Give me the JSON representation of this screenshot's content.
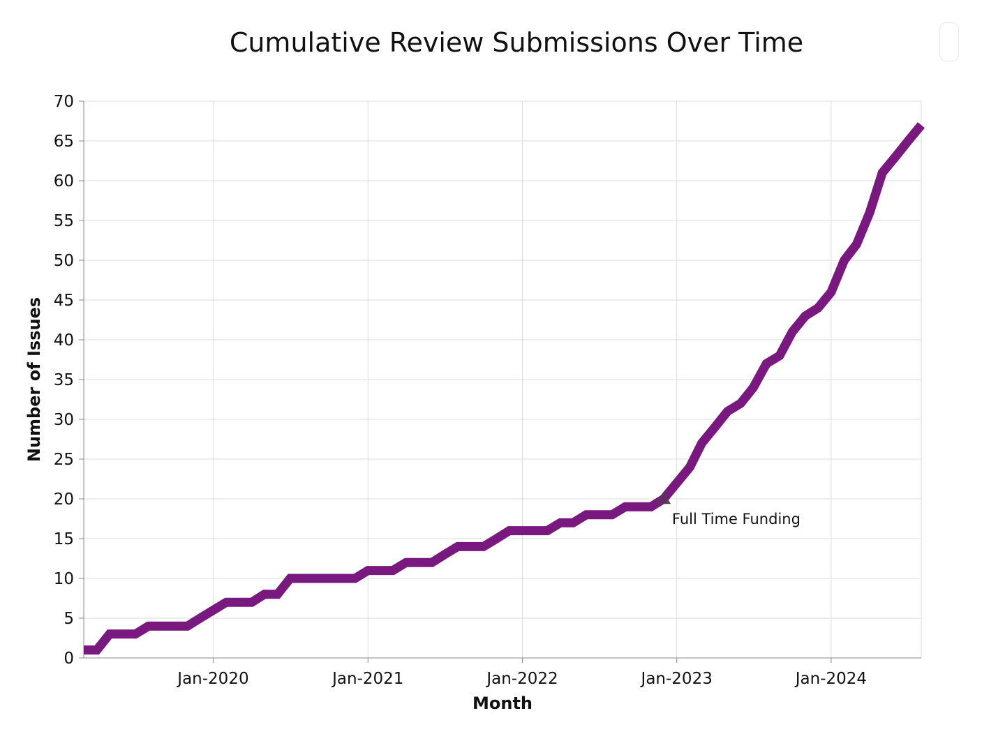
{
  "chart_data": {
    "type": "line",
    "title": "Cumulative Review Submissions Over Time",
    "xlabel": "Month",
    "ylabel": "Number of Issues",
    "xlim": [
      "2019-03-01",
      "2024-08-01"
    ],
    "ylim": [
      0,
      70
    ],
    "grid": true,
    "x_tick_labels": [
      "Jan-2020",
      "Jan-2021",
      "Jan-2022",
      "Jan-2023",
      "Jan-2024"
    ],
    "x_tick_dates": [
      "2020-01-01",
      "2021-01-01",
      "2022-01-01",
      "2023-01-01",
      "2024-01-01"
    ],
    "y_ticks": [
      0,
      5,
      10,
      15,
      20,
      25,
      30,
      35,
      40,
      45,
      50,
      55,
      60,
      65,
      70
    ],
    "line_color": "#79197f",
    "series": [
      {
        "x": [
          "2019-03",
          "2019-04",
          "2019-05",
          "2019-06",
          "2019-07",
          "2019-08",
          "2019-09",
          "2019-10",
          "2019-11",
          "2019-12",
          "2020-01",
          "2020-02",
          "2020-03",
          "2020-04",
          "2020-05",
          "2020-06",
          "2020-07",
          "2020-08",
          "2020-09",
          "2020-10",
          "2020-11",
          "2020-12",
          "2021-01",
          "2021-02",
          "2021-03",
          "2021-04",
          "2021-05",
          "2021-06",
          "2021-07",
          "2021-08",
          "2021-09",
          "2021-10",
          "2021-11",
          "2021-12",
          "2022-01",
          "2022-02",
          "2022-03",
          "2022-04",
          "2022-05",
          "2022-06",
          "2022-07",
          "2022-08",
          "2022-09",
          "2022-10",
          "2022-11",
          "2022-12",
          "2023-01",
          "2023-02",
          "2023-03",
          "2023-04",
          "2023-05",
          "2023-06",
          "2023-07",
          "2023-08",
          "2023-09",
          "2023-10",
          "2023-11",
          "2023-12",
          "2024-01",
          "2024-02",
          "2024-03",
          "2024-04",
          "2024-05",
          "2024-06",
          "2024-07",
          "2024-08"
        ],
        "values": [
          1,
          1,
          3,
          3,
          3,
          4,
          4,
          4,
          4,
          5,
          6,
          7,
          7,
          7,
          8,
          8,
          10,
          10,
          10,
          10,
          10,
          10,
          11,
          11,
          11,
          12,
          12,
          12,
          13,
          14,
          14,
          14,
          15,
          16,
          16,
          16,
          16,
          17,
          17,
          18,
          18,
          18,
          19,
          19,
          19,
          20,
          22,
          24,
          27,
          29,
          31,
          32,
          34,
          37,
          38,
          41,
          43,
          44,
          46,
          50,
          52,
          56,
          61,
          63,
          65,
          67
        ]
      }
    ],
    "annotations": [
      {
        "label": "Full Time Funding",
        "x": "2022-12",
        "y": 20,
        "marker": "triangle"
      }
    ]
  }
}
